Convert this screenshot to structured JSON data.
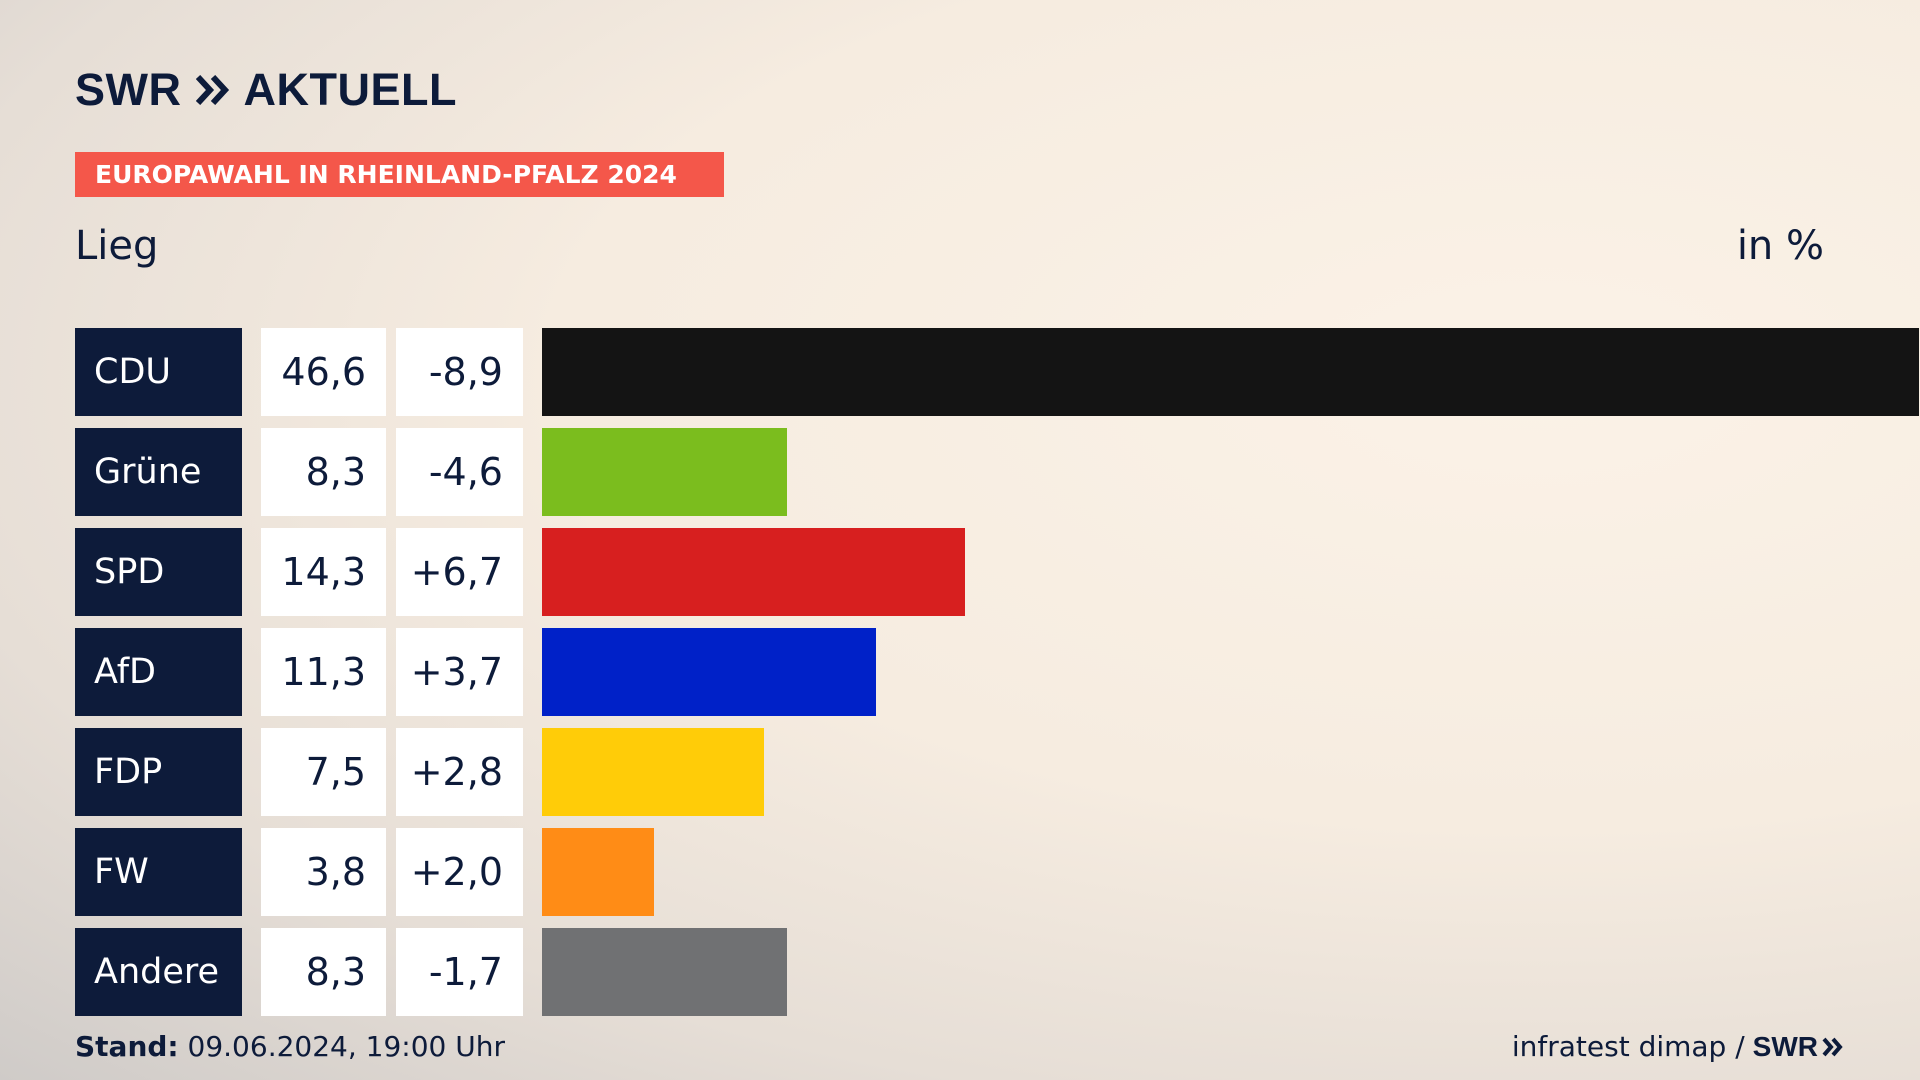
{
  "header": {
    "logo_text": "SWR",
    "logo_suffix": "AKTUELL",
    "tag": "EUROPAWAHL IN RHEINLAND-PFALZ 2024",
    "subtitle": "Lieg",
    "unit": "in %"
  },
  "chart_data": {
    "type": "bar",
    "orientation": "horizontal",
    "categories": [
      "CDU",
      "Grüne",
      "SPD",
      "AfD",
      "FDP",
      "FW",
      "Andere"
    ],
    "values": [
      46.6,
      8.3,
      14.3,
      11.3,
      7.5,
      3.8,
      8.3
    ],
    "value_labels": [
      "46,6",
      "8,3",
      "14,3",
      "11,3",
      "7,5",
      "3,8",
      "8,3"
    ],
    "diff_labels": [
      "-8,9",
      "-4,6",
      "+6,7",
      "+3,7",
      "+2,8",
      "+2,0",
      "-1,7"
    ],
    "colors": [
      "#141414",
      "#7bbd1e",
      "#d71f1f",
      "#0021c8",
      "#ffcc08",
      "#ff8c16",
      "#707173"
    ],
    "xlim": [
      0,
      46.6
    ],
    "grid": false,
    "legend": "none"
  },
  "footer": {
    "stand_label": "Stand:",
    "stand_value": "09.06.2024, 19:00 Uhr",
    "source": "infratest dimap /",
    "source_logo": "SWR"
  },
  "colors": {
    "navy": "#0d1b3a",
    "tag_red": "#f4574a"
  }
}
